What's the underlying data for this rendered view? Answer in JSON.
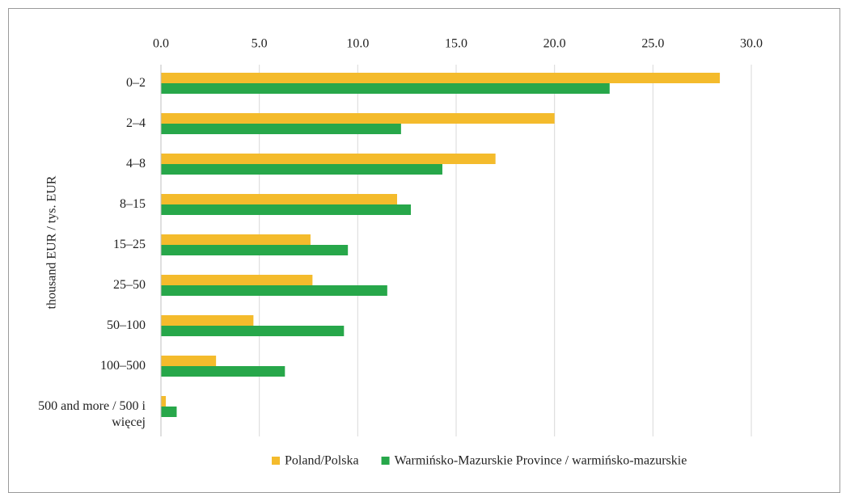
{
  "chart_data": {
    "type": "barh",
    "xlabel": "thousand EUR / tys. EUR",
    "categories": [
      "0–2",
      "2–4",
      "4–8",
      "8–15",
      "15–25",
      "25–50",
      "50–100",
      "100–500",
      "500 and more / 500 i więcej"
    ],
    "series": [
      {
        "name": "Poland/Polska",
        "color": "#f4bb2c",
        "values": [
          28.4,
          20.0,
          17.0,
          12.0,
          7.6,
          7.7,
          4.7,
          2.8,
          0.25
        ]
      },
      {
        "name": "Warmińsko-Mazurskie Province / warmińsko-mazurskie",
        "color": "#27a74a",
        "values": [
          22.8,
          12.2,
          14.3,
          12.7,
          9.5,
          11.5,
          9.3,
          6.3,
          0.8
        ]
      }
    ],
    "xlim": [
      0,
      30
    ],
    "xticks": [
      {
        "value": 0,
        "label": "0.0"
      },
      {
        "value": 5,
        "label": "5.0"
      },
      {
        "value": 10,
        "label": "10.0"
      },
      {
        "value": 15,
        "label": "15.0"
      },
      {
        "value": 20,
        "label": "20.0"
      },
      {
        "value": 25,
        "label": "25.0"
      },
      {
        "value": 30,
        "label": "30.0"
      }
    ],
    "grid": true,
    "legend": "bottom"
  }
}
